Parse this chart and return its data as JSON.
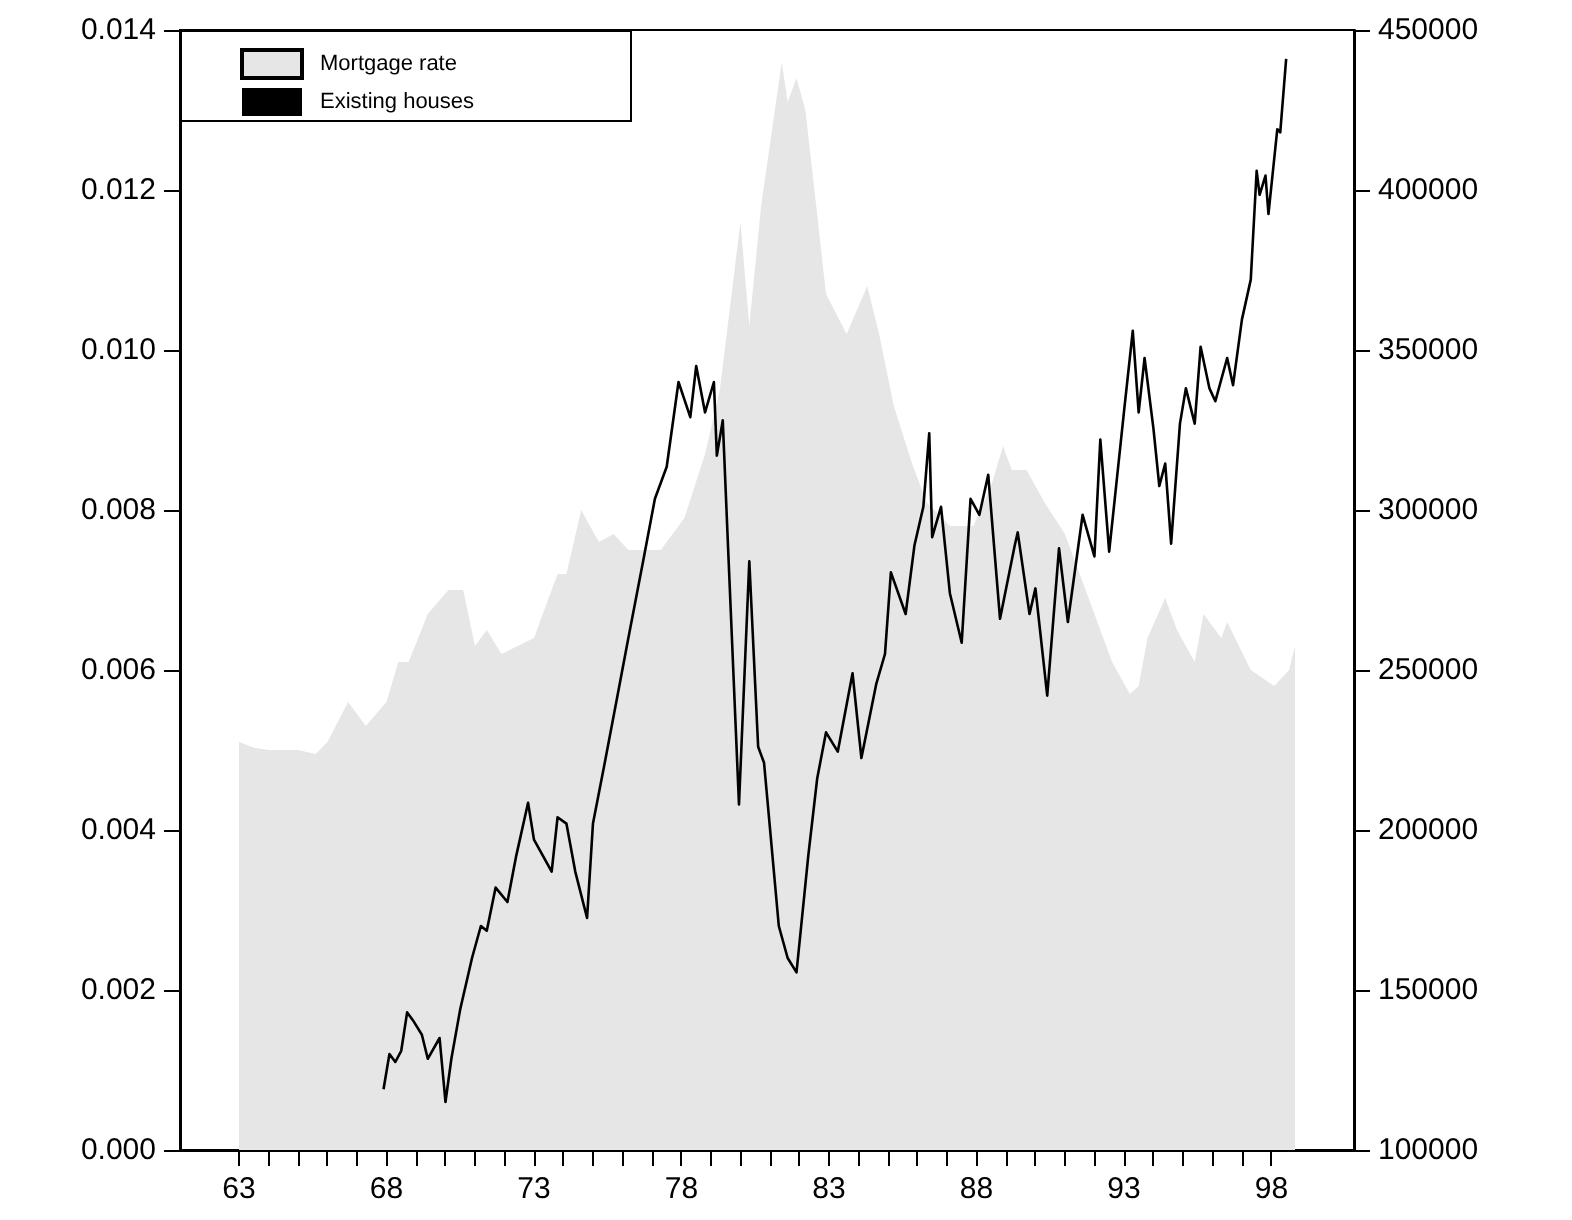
{
  "chart_data": {
    "type": "line",
    "series": [
      {
        "name": "Mortgage rate",
        "type": "area",
        "color": "#e6e6e6",
        "x": [
          63.0,
          63.5,
          64.0,
          65.0,
          65.6,
          66.0,
          66.7,
          67.3,
          68.0,
          68.4,
          68.75,
          69.4,
          70.1,
          70.6,
          71.0,
          71.4,
          71.9,
          73.0,
          73.4,
          73.8,
          74.1,
          74.6,
          75.2,
          75.7,
          76.2,
          77.3,
          78.1,
          78.8,
          79.3,
          79.7,
          80.0,
          80.3,
          80.7,
          81.4,
          81.6,
          81.9,
          82.2,
          82.6,
          82.9,
          83.6,
          84.3,
          84.7,
          85.2,
          85.8,
          86.3,
          87.1,
          87.9,
          88.5,
          88.9,
          89.2,
          89.7,
          90.3,
          91.0,
          91.9,
          92.6,
          93.2,
          93.5,
          93.8,
          94.4,
          94.8,
          95.4,
          95.7,
          96.3,
          96.5,
          97.3,
          98.1,
          98.6,
          98.8
        ],
        "values": [
          0.0051,
          0.00503,
          0.005,
          0.005,
          0.00495,
          0.0051,
          0.0056,
          0.0053,
          0.0056,
          0.0061,
          0.0061,
          0.0067,
          0.007,
          0.007,
          0.0063,
          0.0065,
          0.0062,
          0.0064,
          0.0068,
          0.0072,
          0.0072,
          0.008,
          0.0076,
          0.0077,
          0.0075,
          0.0075,
          0.0079,
          0.0087,
          0.0095,
          0.0107,
          0.0116,
          0.0103,
          0.0118,
          0.0136,
          0.0131,
          0.0134,
          0.013,
          0.0117,
          0.0107,
          0.0102,
          0.0108,
          0.0102,
          0.0093,
          0.0086,
          0.0081,
          0.0078,
          0.0078,
          0.0083,
          0.0088,
          0.0085,
          0.0085,
          0.0081,
          0.0077,
          0.0068,
          0.0061,
          0.0057,
          0.0058,
          0.0064,
          0.0069,
          0.0065,
          0.0061,
          0.0067,
          0.0064,
          0.0066,
          0.006,
          0.0058,
          0.006,
          0.0063
        ]
      },
      {
        "name": "Existing houses",
        "type": "line",
        "axis": "y2",
        "color": "#000000",
        "x": [
          67.9,
          68.1,
          68.3,
          68.5,
          68.7,
          68.9,
          69.2,
          69.4,
          69.8,
          70.0,
          70.2,
          70.5,
          70.9,
          71.2,
          71.4,
          71.7,
          72.1,
          72.4,
          72.8,
          73.0,
          73.6,
          73.8,
          74.1,
          74.4,
          74.8,
          75.0,
          75.4,
          75.8,
          76.2,
          76.7,
          77.1,
          77.5,
          77.9,
          78.3,
          78.5,
          78.8,
          79.1,
          79.2,
          79.4,
          79.6,
          79.95,
          80.3,
          80.6,
          80.8,
          81.3,
          81.6,
          81.9,
          82.3,
          82.6,
          82.9,
          83.3,
          83.8,
          84.1,
          84.6,
          84.9,
          85.1,
          85.6,
          85.9,
          86.2,
          86.4,
          86.5,
          86.8,
          87.1,
          87.5,
          87.8,
          88.1,
          88.4,
          88.8,
          89.3,
          89.4,
          89.8,
          90.0,
          90.4,
          90.8,
          91.1,
          91.6,
          92.0,
          92.2,
          92.5,
          93.0,
          93.3,
          93.5,
          93.7,
          94.0,
          94.2,
          94.4,
          94.6,
          94.9,
          95.1,
          95.4,
          95.6,
          95.9,
          96.1,
          96.5,
          96.7,
          97.0,
          97.3,
          97.5,
          97.6,
          97.8,
          97.9,
          98.2,
          98.3,
          98.5
        ],
        "values": [
          119000,
          130000,
          127500,
          131000,
          143000,
          140500,
          136000,
          128500,
          135000,
          115000,
          128500,
          144000,
          160000,
          170000,
          168500,
          182000,
          177500,
          192000,
          208500,
          197000,
          187000,
          204000,
          202000,
          187000,
          172500,
          202000,
          221000,
          240500,
          260000,
          284000,
          303500,
          313500,
          340000,
          329000,
          345000,
          330500,
          340000,
          317000,
          328000,
          284000,
          208000,
          284000,
          226000,
          221000,
          170000,
          160000,
          155500,
          192000,
          216000,
          230500,
          224500,
          249000,
          222500,
          245500,
          255000,
          280500,
          267500,
          289000,
          301000,
          324000,
          291500,
          301000,
          274000,
          258500,
          303500,
          298500,
          311000,
          266000,
          289000,
          293000,
          267500,
          275500,
          242000,
          288000,
          265000,
          298500,
          285500,
          322000,
          287000,
          330500,
          356000,
          330500,
          347500,
          325500,
          307500,
          314500,
          289500,
          327000,
          338000,
          327000,
          351000,
          338000,
          334000,
          347500,
          339000,
          359500,
          372000,
          406000,
          398500,
          404500,
          392500,
          419000,
          418000,
          441000
        ]
      }
    ],
    "xlim": [
      61,
      100.8
    ],
    "xticks": [
      63,
      {
        "value": 64,
        "label": null
      },
      {
        "value": 65,
        "label": null
      },
      {
        "value": 66,
        "label": null
      },
      {
        "value": 67,
        "label": null
      },
      68,
      {
        "value": 69,
        "label": null
      },
      {
        "value": 70,
        "label": null
      },
      {
        "value": 71,
        "label": null
      },
      {
        "value": 72,
        "label": null
      },
      73,
      {
        "value": 74,
        "label": null
      },
      {
        "value": 75,
        "label": null
      },
      {
        "value": 76,
        "label": null
      },
      {
        "value": 77,
        "label": null
      },
      78,
      {
        "value": 79,
        "label": null
      },
      {
        "value": 80,
        "label": null
      },
      {
        "value": 81,
        "label": null
      },
      {
        "value": 82,
        "label": null
      },
      83,
      {
        "value": 84,
        "label": null
      },
      {
        "value": 85,
        "label": null
      },
      {
        "value": 86,
        "label": null
      },
      {
        "value": 87,
        "label": null
      },
      88,
      {
        "value": 89,
        "label": null
      },
      {
        "value": 90,
        "label": null
      },
      {
        "value": 91,
        "label": null
      },
      {
        "value": 92,
        "label": null
      },
      93,
      {
        "value": 94,
        "label": null
      },
      {
        "value": 95,
        "label": null
      },
      {
        "value": 96,
        "label": null
      },
      {
        "value": 97,
        "label": null
      },
      98
    ],
    "ylim": [
      0,
      0.014
    ],
    "yticks": [
      {
        "value": 0,
        "label": "0.000"
      },
      {
        "value": 0.002,
        "label": "0.002"
      },
      {
        "value": 0.004,
        "label": "0.004"
      },
      {
        "value": 0.006,
        "label": "0.006"
      },
      {
        "value": 0.008,
        "label": "0.008"
      },
      {
        "value": 0.01,
        "label": "0.010"
      },
      {
        "value": 0.012,
        "label": "0.012"
      },
      {
        "value": 0.014,
        "label": "0.014"
      }
    ],
    "y2lim": [
      100000,
      450000
    ],
    "y2ticks": [
      100000,
      150000,
      200000,
      250000,
      300000,
      350000,
      400000,
      450000
    ],
    "grid": false,
    "legend": "top left",
    "marker": "none",
    "line_style": "solid"
  }
}
